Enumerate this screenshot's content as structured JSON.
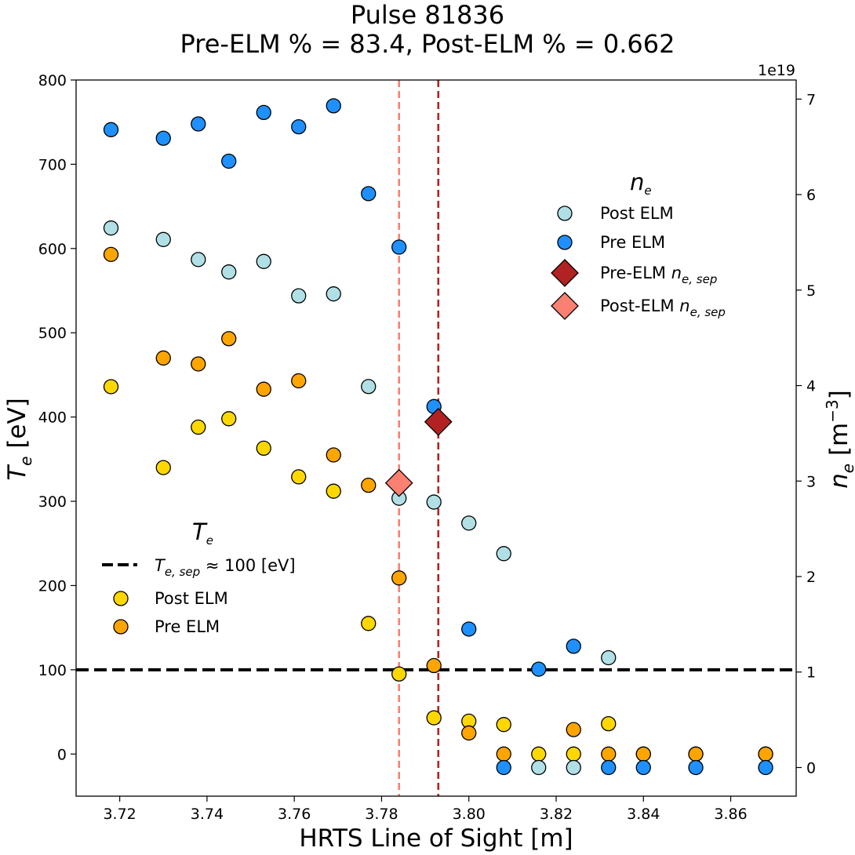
{
  "chart_data": {
    "type": "scatter",
    "title": "Pulse 81836",
    "subtitle": "Pre-ELM % = 83.4, Post-ELM % = 0.662",
    "xlabel": "HRTS Line of Sight [m]",
    "ylabel_left": "T_e [eV]",
    "ylabel_right": "n_e [m^-3]",
    "right_axis_multiplier": "1e19",
    "xlim": [
      3.71,
      3.875
    ],
    "ylim_left": [
      -50,
      800
    ],
    "ylim_right": [
      -0.3,
      7.2
    ],
    "x_ticks": [
      "3.72",
      "3.74",
      "3.76",
      "3.78",
      "3.80",
      "3.82",
      "3.84",
      "3.86"
    ],
    "y_left_ticks": [
      "0",
      "100",
      "200",
      "300",
      "400",
      "500",
      "600",
      "700",
      "800"
    ],
    "y_right_ticks": [
      "0",
      "1",
      "2",
      "3",
      "4",
      "5",
      "6",
      "7"
    ],
    "grid": false,
    "colors": {
      "te_post": "#ffd700",
      "te_pre": "#ffa500",
      "ne_post": "#b0e0e6",
      "ne_pre": "#1e90ff",
      "pre_sep": "#b22222",
      "post_sep": "#fa8072",
      "te_sep_line": "#000000"
    },
    "te_sep_line": {
      "y": 100,
      "label": "T_e,sep ≈ 100 [eV]"
    },
    "vlines": [
      {
        "x": 3.784,
        "color": "#fa8072",
        "name": "post-elm-separatrix"
      },
      {
        "x": 3.793,
        "color": "#b22222",
        "name": "pre-elm-separatrix"
      }
    ],
    "legend_te": {
      "title": "T_e",
      "placement": "lower-left",
      "entries": [
        "T_e,sep ≈ 100 [eV]",
        "Post ELM",
        "Pre ELM"
      ]
    },
    "legend_ne": {
      "title": "n_e",
      "placement": "upper-right",
      "entries": [
        "Post ELM",
        "Pre ELM",
        "Pre-ELM n_e,sep",
        "Post-ELM n_e,sep"
      ]
    },
    "series": [
      {
        "name": "Post ELM",
        "axis": "left",
        "quantity": "Te",
        "color": "#ffd700",
        "x": [
          3.718,
          3.73,
          3.738,
          3.745,
          3.753,
          3.761,
          3.769,
          3.777,
          3.784,
          3.792,
          3.8,
          3.808,
          3.816,
          3.824,
          3.832,
          3.84,
          3.852,
          3.868
        ],
        "y": [
          436,
          340,
          388,
          398,
          363,
          329,
          312,
          155,
          95,
          43,
          39,
          35,
          0,
          0,
          36,
          0,
          0,
          0
        ]
      },
      {
        "name": "Pre ELM",
        "axis": "left",
        "quantity": "Te",
        "color": "#ffa500",
        "x": [
          3.718,
          3.73,
          3.738,
          3.745,
          3.753,
          3.761,
          3.769,
          3.777,
          3.784,
          3.792,
          3.8,
          3.808,
          3.824,
          3.832,
          3.84,
          3.852,
          3.868
        ],
        "y": [
          593,
          470,
          463,
          493,
          433,
          443,
          355,
          319,
          209,
          105,
          25,
          0,
          29,
          0,
          0,
          0,
          0
        ]
      },
      {
        "name": "Post ELM",
        "axis": "right",
        "quantity": "ne",
        "color": "#b0e0e6",
        "x": [
          3.718,
          3.73,
          3.738,
          3.745,
          3.753,
          3.761,
          3.769,
          3.777,
          3.784,
          3.792,
          3.8,
          3.808,
          3.816,
          3.824,
          3.832
        ],
        "y": [
          5.65,
          5.53,
          5.32,
          5.19,
          5.3,
          4.94,
          4.96,
          3.99,
          2.82,
          2.78,
          2.56,
          2.24,
          0,
          0,
          1.15
        ]
      },
      {
        "name": "Pre ELM",
        "axis": "right",
        "quantity": "ne",
        "color": "#1e90ff",
        "x": [
          3.718,
          3.73,
          3.738,
          3.745,
          3.753,
          3.761,
          3.769,
          3.777,
          3.784,
          3.792,
          3.8,
          3.808,
          3.816,
          3.824,
          3.832,
          3.84,
          3.852,
          3.868
        ],
        "y": [
          6.68,
          6.59,
          6.74,
          6.35,
          6.86,
          6.71,
          6.93,
          6.01,
          5.45,
          3.78,
          1.45,
          0,
          1.03,
          1.27,
          0,
          0,
          0,
          0
        ]
      },
      {
        "name": "Pre-ELM n_e,sep",
        "axis": "right",
        "quantity": "ne",
        "color": "#b22222",
        "marker": "diamond",
        "x": [
          3.793
        ],
        "y": [
          3.62
        ]
      },
      {
        "name": "Post-ELM n_e,sep",
        "axis": "right",
        "quantity": "ne",
        "color": "#fa8072",
        "marker": "diamond",
        "x": [
          3.784
        ],
        "y": [
          2.98
        ]
      }
    ]
  }
}
